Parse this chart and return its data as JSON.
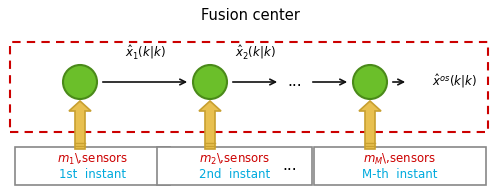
{
  "title": "Fusion center",
  "title_fontsize": 10.5,
  "fig_bg": "#ffffff",
  "circle_color": "#6bbf2a",
  "circle_edge": "#4a8a1a",
  "circle_linewidth": 1.5,
  "arrow_color": "#111111",
  "arrow_lw": 1.2,
  "label1": "$\\hat{x}_1(k|k)$",
  "label2": "$\\hat{x}_2(k|k)$",
  "label_os": "$\\hat{x}^{os}(k|k)$",
  "up_arrow_color_face": "#e8c050",
  "up_arrow_color_edge": "#c8a030",
  "sensor_text_color": "#cc0000",
  "instant_text_color": "#00aadd",
  "box_edge_color": "#cc0000",
  "sensor_box_edge": "#888888",
  "sensor_box_face": "#ffffff",
  "dots_text": "...",
  "sensor_labels": [
    [
      "$m_1$\\,sensors",
      "1st  instant"
    ],
    [
      "$m_2$\\,sensors",
      "2nd  instant"
    ],
    [
      "$m_M$\\,sensors",
      "M-th  instant"
    ]
  ]
}
